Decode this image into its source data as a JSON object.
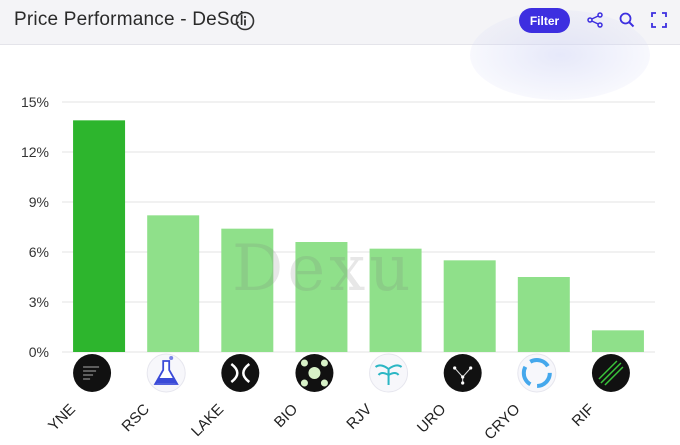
{
  "header": {
    "title": "Price Performance - DeSci",
    "filter_label": "Filter"
  },
  "icons": {
    "info": "info-icon",
    "share": "share-icon",
    "search": "search-icon",
    "fullscreen": "fullscreen-icon"
  },
  "colors": {
    "accent": "#3d2fe0",
    "highlight_bar": "#2db52d",
    "bar": "#8fe08a",
    "grid": "#e3e3e3"
  },
  "watermark": "Dexu",
  "chart_data": {
    "type": "bar",
    "title": "",
    "xlabel": "",
    "ylabel": "",
    "categories": [
      "YNE",
      "RSC",
      "LAKE",
      "BIO",
      "RJV",
      "URO",
      "CRYO",
      "RIF"
    ],
    "values": [
      13.9,
      8.2,
      7.4,
      6.6,
      6.2,
      5.5,
      4.5,
      1.3
    ],
    "highlight_index": 0,
    "ylim": [
      0,
      15
    ],
    "yticks": [
      0,
      3,
      6,
      9,
      12,
      15
    ],
    "ytick_labels": [
      "0%",
      "3%",
      "6%",
      "9%",
      "12%",
      "15%"
    ],
    "grid": true,
    "legend": "none",
    "token_icons": [
      "yne-token-icon",
      "rsc-token-icon",
      "lake-token-icon",
      "bio-token-icon",
      "rjv-token-icon",
      "uro-token-icon",
      "cryo-token-icon",
      "rif-token-icon"
    ]
  }
}
